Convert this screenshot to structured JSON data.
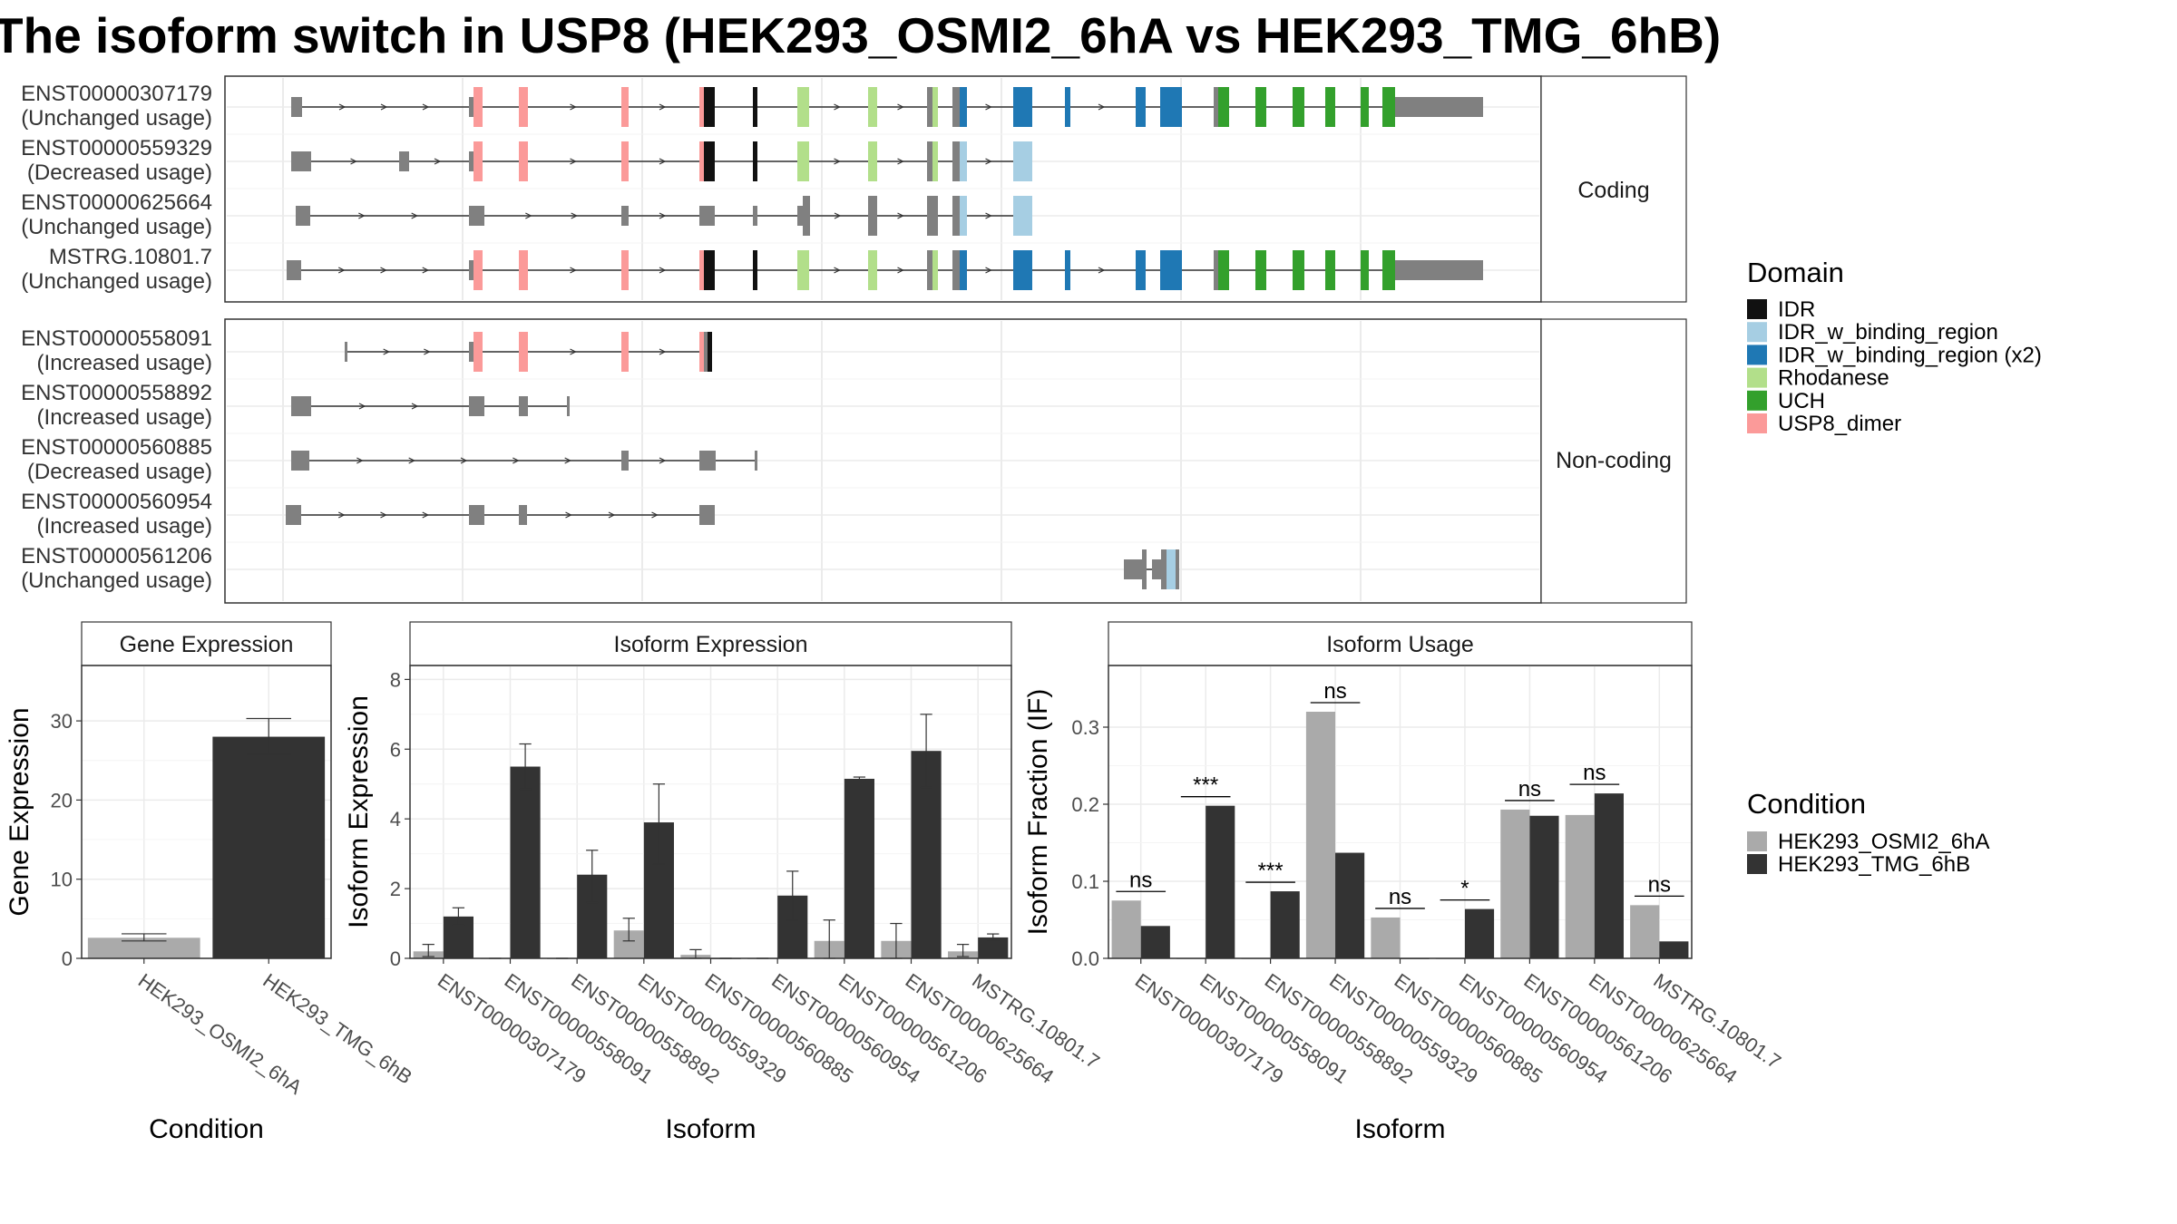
{
  "title": "The isoform switch in USP8 (HEK293_OSMI2_6hA vs HEK293_TMG_6hB)",
  "colors": {
    "IDR": "#111111",
    "IDR_w_binding_region": "#a6cee3",
    "IDR_w_binding_region (x2)": "#1f78b4",
    "Rhodanese": "#b2df8a",
    "UCH": "#33a02c",
    "USP8_dimer": "#fb9a99",
    "HEK293_OSMI2_6hA": "#aaaaaa",
    "HEK293_TMG_6hB": "#333333",
    "exon": "#808080",
    "panel_border": "#333333",
    "grid": "#ebebeb"
  },
  "transcripts": {
    "strip_coding": "Coding",
    "strip_noncoding": "Non-coding",
    "coding": [
      {
        "id": "ENST00000307179",
        "usage": "(Unchanged usage)",
        "structure": "full"
      },
      {
        "id": "ENST00000559329",
        "usage": "(Decreased usage)",
        "structure": "truncated"
      },
      {
        "id": "ENST00000625664",
        "usage": "(Unchanged usage)",
        "structure": "truncated-gray"
      },
      {
        "id": "MSTRG.10801.7",
        "usage": "(Unchanged usage)",
        "structure": "full"
      }
    ],
    "noncoding": [
      {
        "id": "ENST00000558091",
        "usage": "(Increased usage)"
      },
      {
        "id": "ENST00000558892",
        "usage": "(Increased usage)"
      },
      {
        "id": "ENST00000560885",
        "usage": "(Decreased usage)"
      },
      {
        "id": "ENST00000560954",
        "usage": "(Increased usage)"
      },
      {
        "id": "ENST00000561206",
        "usage": "(Unchanged usage)"
      }
    ]
  },
  "legend_domain": {
    "title": "Domain",
    "items": [
      "IDR",
      "IDR_w_binding_region",
      "IDR_w_binding_region (x2)",
      "Rhodanese",
      "UCH",
      "USP8_dimer"
    ]
  },
  "legend_condition": {
    "title": "Condition",
    "items": [
      "HEK293_OSMI2_6hA",
      "HEK293_TMG_6hB"
    ]
  },
  "chart_data": [
    {
      "type": "bar",
      "title": "Gene Expression",
      "xlabel": "Condition",
      "ylabel": "Gene Expression",
      "ylim": [
        0,
        37
      ],
      "yticks": [
        0,
        10,
        20,
        30
      ],
      "categories": [
        "HEK293_OSMI2_6hA",
        "HEK293_TMG_6hB"
      ],
      "values": [
        2.6,
        28.0
      ],
      "errors": [
        [
          2.2,
          3.1
        ],
        [
          25.8,
          30.3
        ]
      ]
    },
    {
      "type": "bar",
      "title": "Isoform Expression",
      "xlabel": "Isoform",
      "ylabel": "Isoform Expression",
      "ylim": [
        0,
        8.4
      ],
      "yticks": [
        0,
        2,
        4,
        6,
        8
      ],
      "categories": [
        "ENST00000307179",
        "ENST00000558091",
        "ENST00000558892",
        "ENST00000559329",
        "ENST00000560885",
        "ENST00000560954",
        "ENST00000561206",
        "ENST00000625664",
        "MSTRG.10801.7"
      ],
      "series": [
        {
          "name": "HEK293_OSMI2_6hA",
          "values": [
            0.2,
            0.0,
            0.0,
            0.8,
            0.1,
            0.0,
            0.5,
            0.5,
            0.2
          ],
          "errors": [
            [
              0.05,
              0.4
            ],
            [
              0,
              0
            ],
            [
              0,
              0
            ],
            [
              0.5,
              1.15
            ],
            [
              0.0,
              0.25
            ],
            [
              0,
              0
            ],
            [
              0.0,
              1.1
            ],
            [
              0.0,
              1.0
            ],
            [
              0.05,
              0.4
            ]
          ]
        },
        {
          "name": "HEK293_TMG_6hB",
          "values": [
            1.2,
            5.5,
            2.4,
            3.9,
            0.0,
            1.8,
            5.15,
            5.95,
            0.6
          ],
          "errors": [
            [
              0.95,
              1.45
            ],
            [
              4.85,
              6.15
            ],
            [
              1.6,
              3.1
            ],
            [
              2.7,
              5.0
            ],
            [
              0,
              0
            ],
            [
              1.1,
              2.5
            ],
            [
              5.1,
              5.2
            ],
            [
              4.9,
              7.0
            ],
            [
              0.5,
              0.7
            ]
          ]
        }
      ]
    },
    {
      "type": "bar",
      "title": "Isoform Usage",
      "xlabel": "Isoform",
      "ylabel": "Isoform Fraction (IF)",
      "ylim": [
        0,
        0.38
      ],
      "yticks": [
        0.0,
        0.1,
        0.2,
        0.3
      ],
      "ytick_labels": [
        "0.0",
        "0.1",
        "0.2",
        "0.3"
      ],
      "categories": [
        "ENST00000307179",
        "ENST00000558091",
        "ENST00000558892",
        "ENST00000559329",
        "ENST00000560885",
        "ENST00000560954",
        "ENST00000561206",
        "ENST00000625664",
        "MSTRG.10801.7"
      ],
      "series": [
        {
          "name": "HEK293_OSMI2_6hA",
          "values": [
            0.075,
            0.0,
            0.0,
            0.32,
            0.053,
            0.0,
            0.193,
            0.186,
            0.069
          ]
        },
        {
          "name": "HEK293_TMG_6hB",
          "values": [
            0.042,
            0.198,
            0.087,
            0.137,
            0.0,
            0.064,
            0.185,
            0.214,
            0.022
          ]
        }
      ],
      "significance": [
        "ns",
        "***",
        "***",
        "ns",
        "ns",
        "*",
        "ns",
        "ns",
        "ns"
      ]
    }
  ]
}
